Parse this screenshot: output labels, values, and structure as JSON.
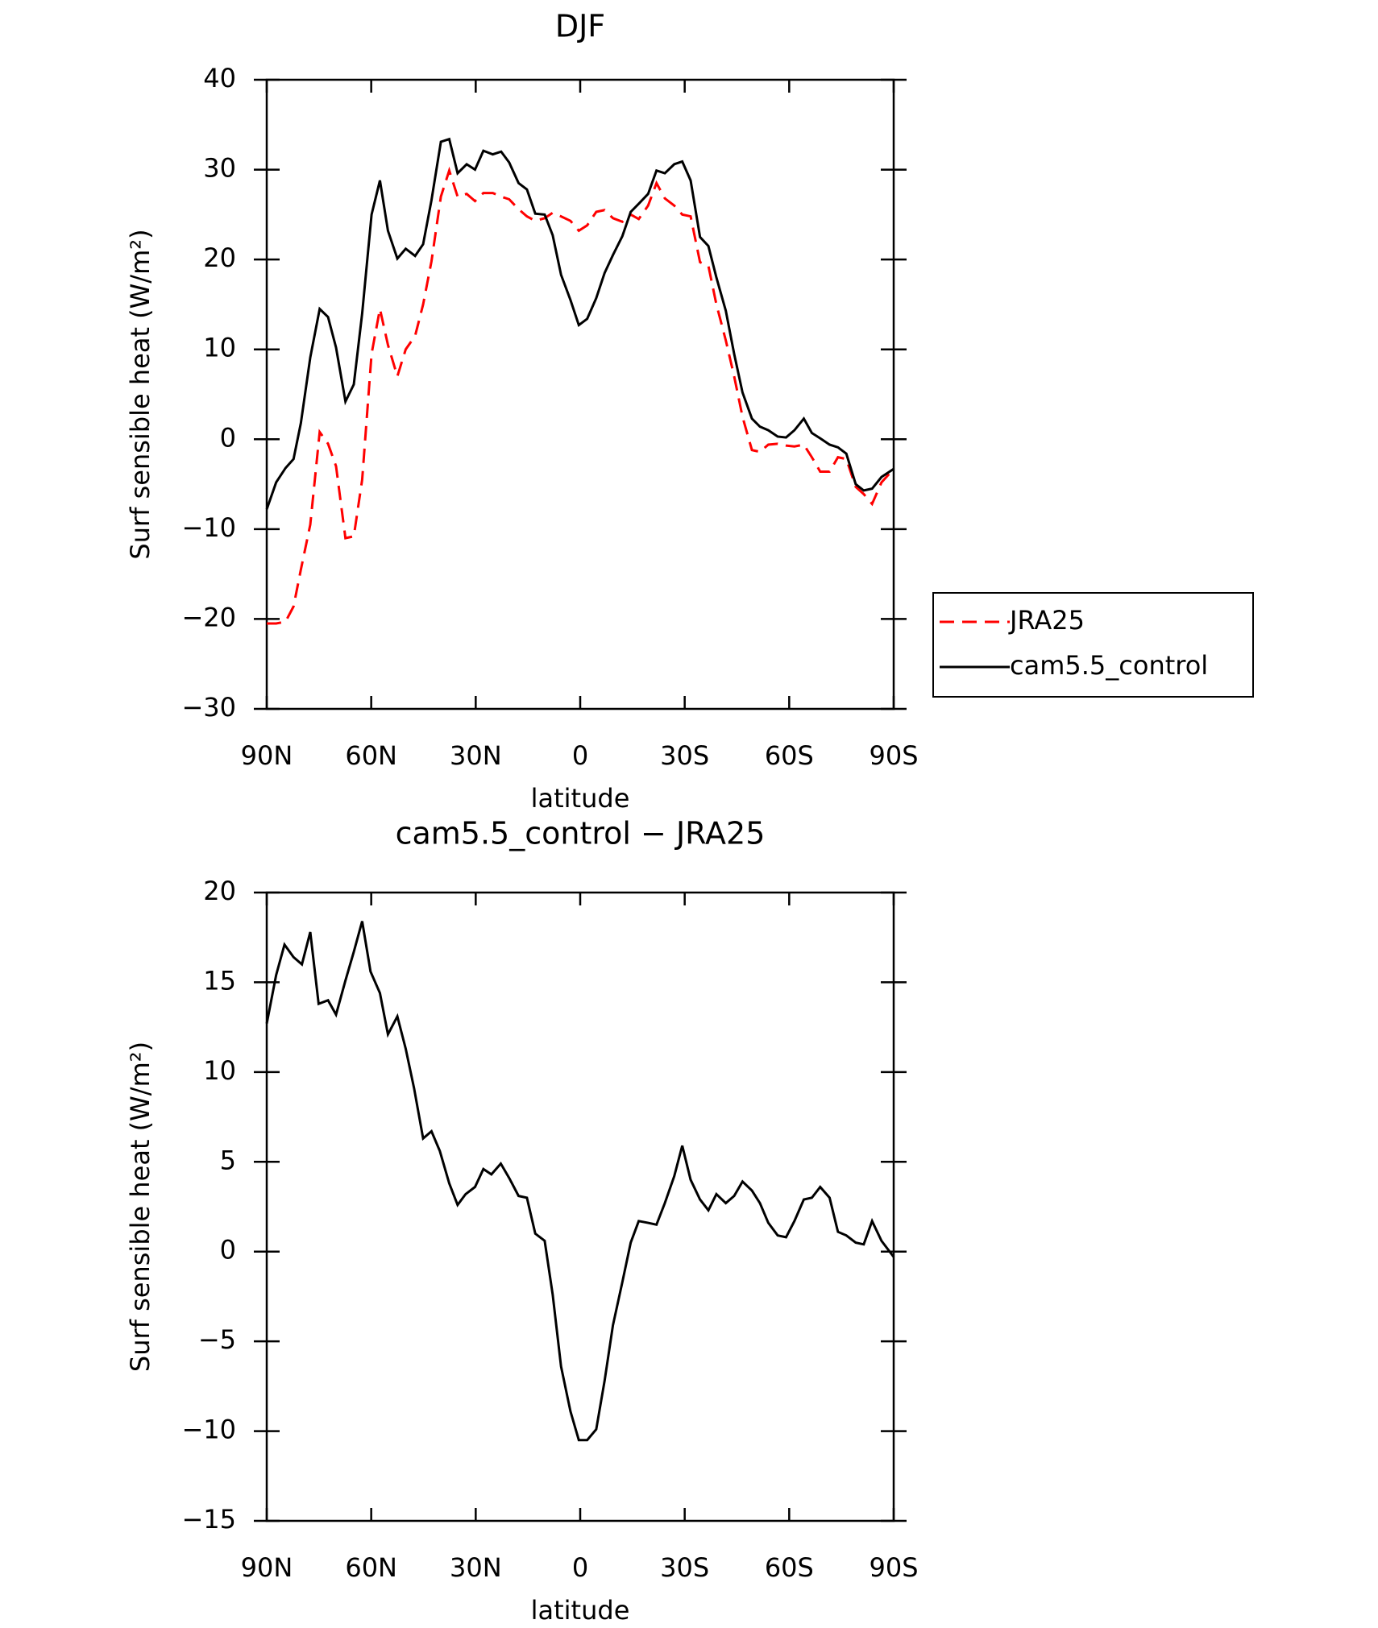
{
  "chart_data": [
    {
      "type": "line",
      "title": "DJF",
      "xlabel": "latitude",
      "ylabel": "Surf sensible heat (W/m²)",
      "xlim": [
        90,
        -90
      ],
      "ylim": [
        -30,
        40
      ],
      "xticks": [
        {
          "value": 90,
          "label": "90N"
        },
        {
          "value": 60,
          "label": "60N"
        },
        {
          "value": 30,
          "label": "30N"
        },
        0,
        {
          "value": -30,
          "label": "30S"
        },
        {
          "value": -60,
          "label": "60S"
        },
        {
          "value": -90,
          "label": "90S"
        }
      ],
      "yticks": [
        {
          "value": -30,
          "label": "−30"
        },
        {
          "value": -20,
          "label": "−20"
        },
        {
          "value": -10,
          "label": "−10"
        },
        0,
        10,
        20,
        30,
        40
      ],
      "legend": "outside-right",
      "x": [
        90,
        87.3,
        84.6,
        82.3,
        80.2,
        77.5,
        74.8,
        72.4,
        70.1,
        67.4,
        65,
        62.6,
        59.9,
        57.5,
        55.2,
        52.5,
        50.1,
        47.4,
        45.1,
        42.7,
        40,
        37.6,
        35.2,
        32.6,
        30.2,
        27.8,
        25.1,
        22.7,
        20.4,
        17.7,
        15.3,
        12.9,
        10.2,
        7.9,
        5.5,
        2.8,
        0.4,
        -2,
        -4.6,
        -7,
        -9.4,
        -12.1,
        -14.5,
        -16.8,
        -19.5,
        -21.9,
        -24.3,
        -27,
        -29.3,
        -31.7,
        -34.4,
        -36.8,
        -39.1,
        -41.8,
        -44.2,
        -46.6,
        -49.3,
        -51.6,
        -54,
        -56.7,
        -59.1,
        -61.5,
        -64.2,
        -66.5,
        -68.9,
        -71.6,
        -74,
        -76.4,
        -79.1,
        -81.4,
        -83.8,
        -86.5,
        -90
      ],
      "series": [
        {
          "name": "JRA25",
          "color": "#ff0000",
          "line_style": "dashed",
          "values": [
            -20.5,
            -20.5,
            -20.3,
            -18.6,
            -14.5,
            -9.5,
            0.8,
            -0.5,
            -3,
            -11,
            -10.8,
            -4.5,
            9.5,
            14.5,
            10.5,
            7,
            10,
            11.5,
            15,
            19.8,
            27,
            29.9,
            27,
            27.3,
            26.5,
            27.4,
            27.4,
            27,
            26.7,
            25.6,
            24.8,
            24.3,
            24.6,
            25.2,
            24.8,
            24.3,
            23.2,
            23.8,
            25.3,
            25.5,
            24.6,
            24.2,
            25,
            24.5,
            26,
            28.5,
            26.8,
            26,
            25,
            24.8,
            19.7,
            19.3,
            15,
            11,
            7,
            2.5,
            -1.2,
            -1.4,
            -0.6,
            -0.5,
            -0.7,
            -0.8,
            -0.6,
            -2,
            -3.6,
            -3.6,
            -2,
            -2.2,
            -5.3,
            -6.1,
            -7.2,
            -4.8,
            -3.3
          ]
        },
        {
          "name": "cam5.5_control",
          "color": "#000000",
          "line_style": "solid",
          "values": [
            -7.8,
            -4.8,
            -3.2,
            -2.2,
            1.8,
            9.1,
            14.5,
            13.6,
            10.2,
            4.2,
            6.1,
            14,
            25,
            28.8,
            23.2,
            20.1,
            21.2,
            20.4,
            21.7,
            26.6,
            33.1,
            33.4,
            29.6,
            30.6,
            30,
            32.1,
            31.7,
            32,
            30.8,
            28.5,
            27.8,
            25.1,
            25,
            22.7,
            18.3,
            15.5,
            12.7,
            13.4,
            15.7,
            18.5,
            20.5,
            22.6,
            25.3,
            26.2,
            27.3,
            29.9,
            29.6,
            30.6,
            30.9,
            28.8,
            22.5,
            21.5,
            18,
            14.3,
            9.5,
            5.2,
            2.3,
            1.4,
            1,
            0.3,
            0.2,
            1,
            2.3,
            0.7,
            0.1,
            -0.6,
            -0.9,
            -1.6,
            -5,
            -5.7,
            -5.5,
            -4.2,
            -3.3
          ]
        }
      ]
    },
    {
      "type": "line",
      "title": "cam5.5_control − JRA25",
      "xlabel": "latitude",
      "ylabel": "Surf sensible heat (W/m²)",
      "xlim": [
        90,
        -90
      ],
      "ylim": [
        -15,
        20
      ],
      "xticks": [
        {
          "value": 90,
          "label": "90N"
        },
        {
          "value": 60,
          "label": "60N"
        },
        {
          "value": 30,
          "label": "30N"
        },
        0,
        {
          "value": -30,
          "label": "30S"
        },
        {
          "value": -60,
          "label": "60S"
        },
        {
          "value": -90,
          "label": "90S"
        }
      ],
      "yticks": [
        {
          "value": -15,
          "label": "−15"
        },
        {
          "value": -10,
          "label": "−10"
        },
        {
          "value": -5,
          "label": "−5"
        },
        0,
        5,
        10,
        15,
        20
      ],
      "x": [
        90,
        87.3,
        84.9,
        82.3,
        79.9,
        77.5,
        75.1,
        72.4,
        70.1,
        67.4,
        65,
        62.6,
        60.2,
        57.5,
        55.2,
        52.5,
        50.1,
        47.7,
        45.1,
        42.7,
        40.3,
        37.6,
        35.2,
        32.9,
        30.2,
        27.8,
        25.5,
        22.8,
        20.4,
        17.7,
        15.3,
        12.9,
        10.2,
        7.9,
        5.5,
        2.8,
        0.4,
        -2,
        -4.6,
        -7,
        -9.4,
        -12.1,
        -14.5,
        -16.8,
        -19.5,
        -21.9,
        -24.3,
        -27,
        -29.3,
        -31.7,
        -34.4,
        -36.8,
        -39.1,
        -41.8,
        -44.2,
        -46.6,
        -49.3,
        -51.6,
        -54,
        -56.7,
        -59.1,
        -61.5,
        -64.2,
        -66.5,
        -68.9,
        -71.6,
        -74,
        -76.4,
        -79.1,
        -81.4,
        -83.8,
        -86.5,
        -90
      ],
      "series": [
        {
          "color": "#000000",
          "line_style": "solid",
          "values": [
            12.7,
            15.4,
            17.1,
            16.4,
            16,
            17.8,
            13.8,
            14,
            13.2,
            15.1,
            16.7,
            18.4,
            15.6,
            14.4,
            12.1,
            13.1,
            11.3,
            9.1,
            6.3,
            6.7,
            5.6,
            3.8,
            2.6,
            3.2,
            3.6,
            4.6,
            4.3,
            4.9,
            4.1,
            3.1,
            3,
            1,
            0.6,
            -2.4,
            -6.4,
            -8.9,
            -10.5,
            -10.5,
            -9.9,
            -7.2,
            -4.1,
            -1.7,
            0.5,
            1.7,
            1.6,
            1.5,
            2.7,
            4.2,
            5.9,
            4,
            2.9,
            2.3,
            3.2,
            2.7,
            3.1,
            3.9,
            3.4,
            2.7,
            1.6,
            0.9,
            0.8,
            1.7,
            2.9,
            3,
            3.6,
            3,
            1.1,
            0.9,
            0.5,
            0.4,
            1.7,
            0.6,
            -0.3
          ]
        }
      ]
    }
  ]
}
